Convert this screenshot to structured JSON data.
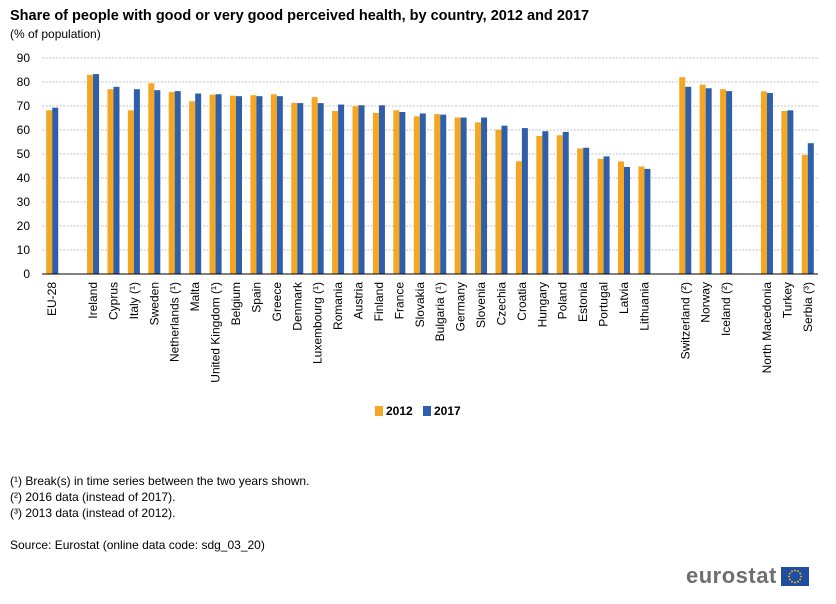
{
  "title": "Share of people with good or very good perceived health, by country, 2012 and 2017",
  "subtitle": "(% of population)",
  "footnotes": [
    "(¹) Break(s) in time series between the two years shown.",
    "(²) 2016 data (instead of 2017).",
    "(³) 2013 data (instead of 2012)."
  ],
  "source": "Source: Eurostat (online data code: sdg_03_20)",
  "logo_text": "eurostat",
  "colors": {
    "2012": "#f5a623",
    "2017": "#2e5fa8",
    "grid": "#b0b0b0",
    "axis": "#000000"
  },
  "chart_data": {
    "type": "bar",
    "ylim": [
      0,
      90
    ],
    "yticks": [
      0,
      10,
      20,
      30,
      40,
      50,
      60,
      70,
      80,
      90
    ],
    "grid": true,
    "legend_position": "bottom-center",
    "categories": [
      "EU-28",
      "",
      "Ireland",
      "Cyprus",
      "Italy (¹)",
      "Sweden",
      "Netherlands (¹)",
      "Malta",
      "United Kingdom (¹)",
      "Belgium",
      "Spain",
      "Greece",
      "Denmark",
      "Luxembourg (¹)",
      "Romania",
      "Austria",
      "Finland",
      "France",
      "Slovakia",
      "Bulgaria (¹)",
      "Germany",
      "Slovenia",
      "Czechia",
      "Croatia",
      "Hungary",
      "Poland",
      "Estonia",
      "Portugal",
      "Latvia",
      "Lithuania",
      "",
      "Switzerland (²)",
      "Norway",
      "Iceland (²)",
      "",
      "North Macedonia",
      "Turkey",
      "Serbia (³)"
    ],
    "series": [
      {
        "name": "2012",
        "values": [
          68.2,
          null,
          83.0,
          77.0,
          68.2,
          79.5,
          75.8,
          72.0,
          74.7,
          74.3,
          74.5,
          74.9,
          71.3,
          73.7,
          67.9,
          69.9,
          67.1,
          68.2,
          65.7,
          66.6,
          65.2,
          63.2,
          60.1,
          47.0,
          57.5,
          57.8,
          52.3,
          48.0,
          46.9,
          44.8,
          null,
          82.0,
          78.9,
          77.0,
          null,
          76.1,
          67.9,
          49.6
        ]
      },
      {
        "name": "2017",
        "values": [
          69.3,
          null,
          83.3,
          78.0,
          77.0,
          76.6,
          76.2,
          75.2,
          74.9,
          74.1,
          74.1,
          74.1,
          71.2,
          71.2,
          70.6,
          70.3,
          70.3,
          67.5,
          66.9,
          66.4,
          65.2,
          65.2,
          61.8,
          60.8,
          59.5,
          59.2,
          52.6,
          49.0,
          44.6,
          43.8,
          null,
          78.0,
          77.4,
          76.2,
          null,
          75.4,
          68.2,
          54.5
        ]
      }
    ]
  }
}
